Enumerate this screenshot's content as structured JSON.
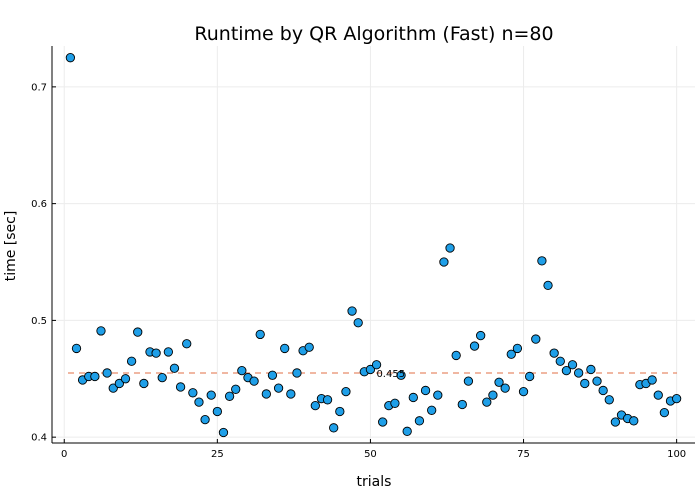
{
  "chart_data": {
    "type": "scatter",
    "title": "Runtime by QR Algorithm (Fast)  n=80",
    "xlabel": "trials",
    "ylabel": "time [sec]",
    "xlim": [
      -2,
      103
    ],
    "ylim": [
      0.395,
      0.735
    ],
    "x_ticks": [
      0,
      25,
      50,
      75,
      100
    ],
    "x_tick_labels": [
      "0",
      "25",
      "50",
      "75",
      "100"
    ],
    "y_ticks": [
      0.4,
      0.5,
      0.6,
      0.7
    ],
    "y_tick_labels": [
      "0.4",
      "0.5",
      "0.6",
      "0.7"
    ],
    "grid": true,
    "legend": "none",
    "marker_color": "#1f9fe8",
    "mean_line_color": "#e26f46",
    "mean": {
      "value": 0.455,
      "label": "0.455",
      "label_x": 50
    },
    "x": [
      1,
      2,
      3,
      4,
      5,
      6,
      7,
      8,
      9,
      10,
      11,
      12,
      13,
      14,
      15,
      16,
      17,
      18,
      19,
      20,
      21,
      22,
      23,
      24,
      25,
      26,
      27,
      28,
      29,
      30,
      31,
      32,
      33,
      34,
      35,
      36,
      37,
      38,
      39,
      40,
      41,
      42,
      43,
      44,
      45,
      46,
      47,
      48,
      49,
      50,
      51,
      52,
      53,
      54,
      55,
      56,
      57,
      58,
      59,
      60,
      61,
      62,
      63,
      64,
      65,
      66,
      67,
      68,
      69,
      70,
      71,
      72,
      73,
      74,
      75,
      76,
      77,
      78,
      79,
      80,
      81,
      82,
      83,
      84,
      85,
      86,
      87,
      88,
      89,
      90,
      91,
      92,
      93,
      94,
      95,
      96,
      97,
      98,
      99,
      100
    ],
    "y": [
      0.725,
      0.476,
      0.449,
      0.452,
      0.452,
      0.491,
      0.455,
      0.442,
      0.446,
      0.45,
      0.465,
      0.49,
      0.446,
      0.473,
      0.472,
      0.451,
      0.473,
      0.459,
      0.443,
      0.48,
      0.438,
      0.43,
      0.415,
      0.436,
      0.422,
      0.404,
      0.435,
      0.441,
      0.457,
      0.451,
      0.448,
      0.488,
      0.437,
      0.453,
      0.442,
      0.476,
      0.437,
      0.455,
      0.474,
      0.477,
      0.427,
      0.433,
      0.432,
      0.408,
      0.422,
      0.439,
      0.508,
      0.498,
      0.456,
      0.458,
      0.462,
      0.413,
      0.427,
      0.429,
      0.453,
      0.405,
      0.434,
      0.414,
      0.44,
      0.423,
      0.436,
      0.55,
      0.562,
      0.47,
      0.428,
      0.448,
      0.478,
      0.487,
      0.43,
      0.436,
      0.447,
      0.442,
      0.471,
      0.476,
      0.439,
      0.452,
      0.484,
      0.551,
      0.53,
      0.472,
      0.465,
      0.457,
      0.462,
      0.455,
      0.446,
      0.458,
      0.448,
      0.44,
      0.432,
      0.413,
      0.419,
      0.416,
      0.414,
      0.445,
      0.446,
      0.449,
      0.436,
      0.421,
      0.431,
      0.433
    ]
  }
}
